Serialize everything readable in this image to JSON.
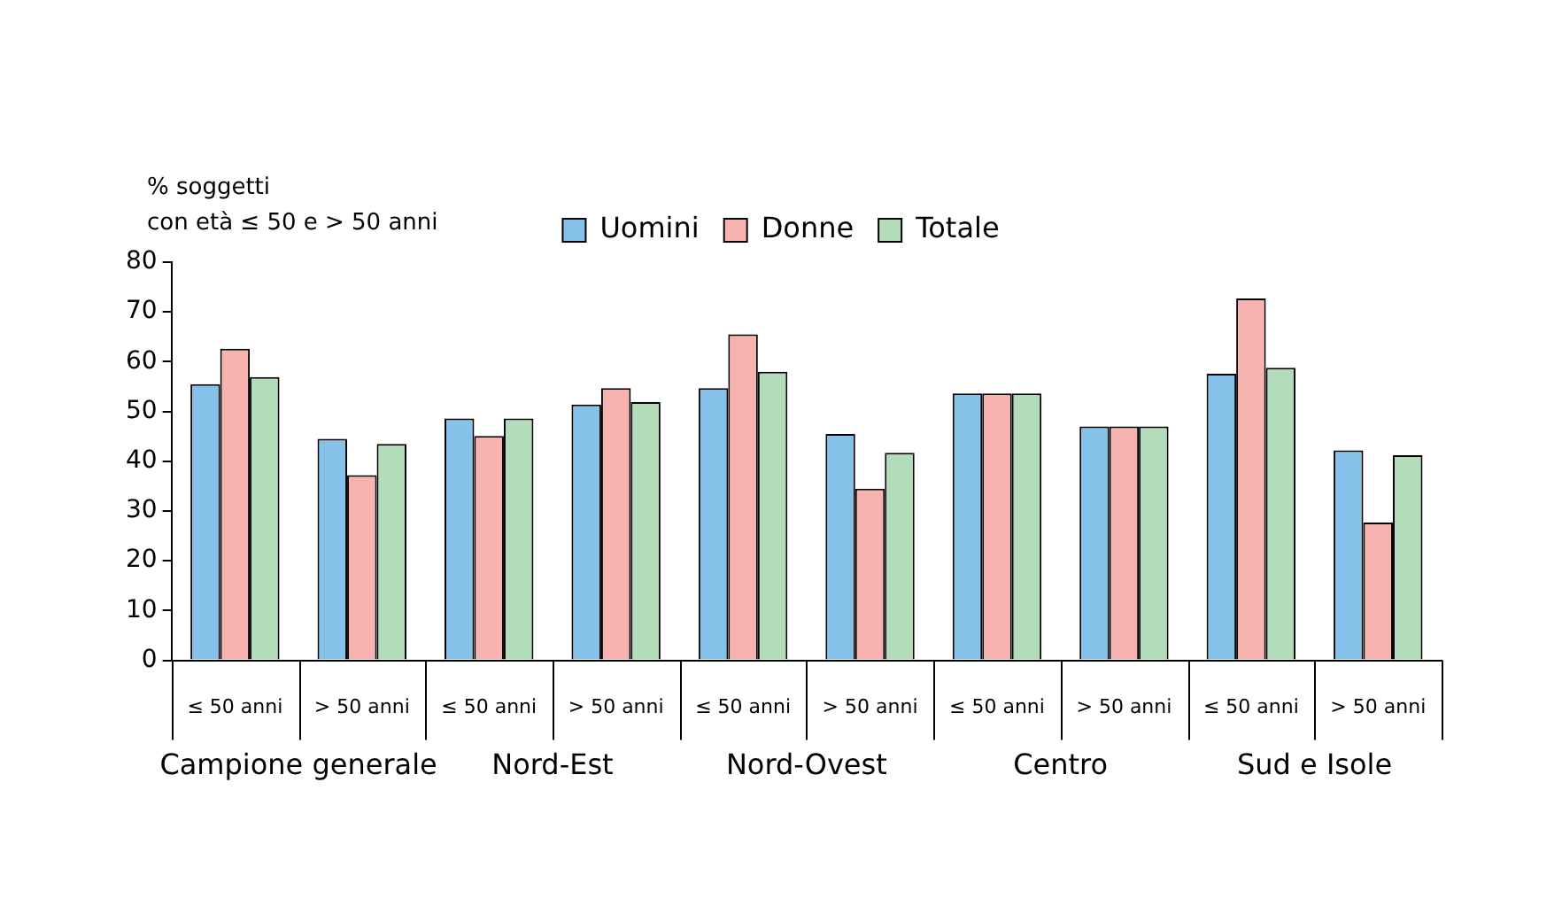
{
  "chart_data": {
    "type": "bar",
    "ylabel": "% soggetti\ncon età ≤ 50 e > 50 anni",
    "categories": [
      "≤ 50 anni",
      "> 50 anni",
      "≤ 50 anni",
      "> 50 anni",
      "≤ 50 anni",
      "> 50 anni",
      "≤ 50 anni",
      "> 50 anni",
      "≤ 50 anni",
      "> 50 anni"
    ],
    "series": [
      {
        "name": "Uomini",
        "color": "#85c1e9",
        "values": [
          55.5,
          44.5,
          48.6,
          51.4,
          54.7,
          45.5,
          53.6,
          47.0,
          57.6,
          42.2
        ]
      },
      {
        "name": "Donne",
        "color": "#f7b3b0",
        "values": [
          62.6,
          37.2,
          45.1,
          54.7,
          65.5,
          34.5,
          53.6,
          47.0,
          72.7,
          27.7
        ]
      },
      {
        "name": "Totale",
        "color": "#b3dcbb",
        "values": [
          56.9,
          43.5,
          48.6,
          51.9,
          58.0,
          41.7,
          53.6,
          47.0,
          58.8,
          41.2
        ]
      }
    ],
    "annotations": [
      "Campione generale",
      "Nord-Est",
      "Nord-Ovest",
      "Centro",
      "Sud e Isole"
    ],
    "ylim": [
      0,
      80
    ],
    "yticks": [
      0,
      10,
      20,
      30,
      40,
      50,
      60,
      70,
      80
    ],
    "grid": false,
    "legend": "top"
  }
}
